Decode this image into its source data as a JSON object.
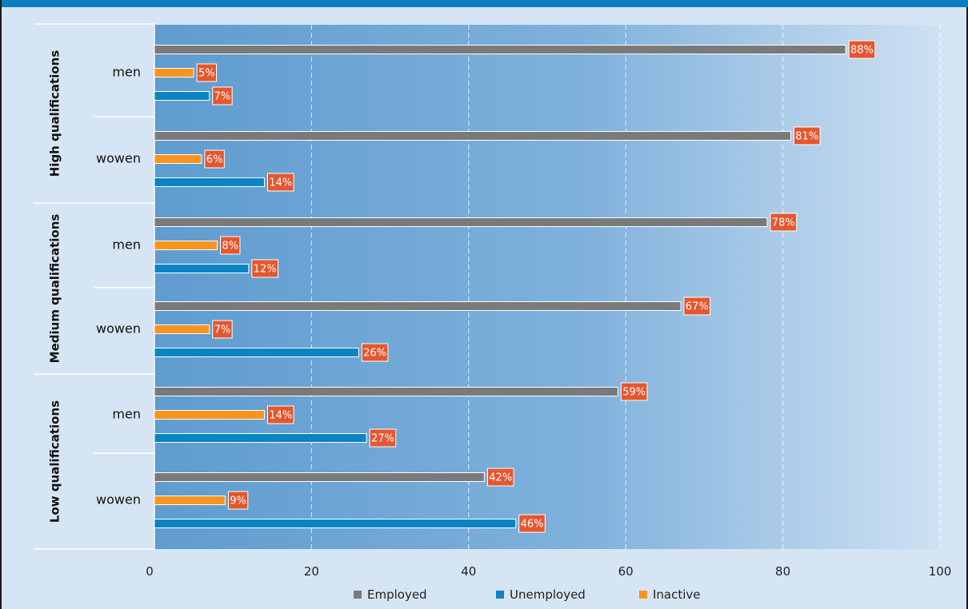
{
  "chart_data": {
    "type": "bar",
    "orientation": "horizontal",
    "title": "",
    "xlabel": "",
    "ylabel": "",
    "xlim": [
      0,
      100
    ],
    "x_ticks": [
      0,
      20,
      40,
      60,
      80,
      100
    ],
    "grid": "vertical dashed",
    "legend_position": "bottom",
    "series": [
      {
        "name": "Employed",
        "color": "#7a7a7a"
      },
      {
        "name": "Unemployed",
        "color": "#0a84c2"
      },
      {
        "name": "Inactive",
        "color": "#f7941d"
      }
    ],
    "bar_order_within_category": [
      "Employed",
      "Inactive",
      "Unemployed"
    ],
    "label_color": "#e4572e",
    "groups": [
      {
        "label": "High qualifications",
        "categories": [
          {
            "label": "men",
            "Employed": 88,
            "Inactive": 5,
            "Unemployed": 7
          },
          {
            "label": "wowen",
            "Employed": 81,
            "Inactive": 6,
            "Unemployed": 14
          }
        ]
      },
      {
        "label": "Medium qualifications",
        "categories": [
          {
            "label": "men",
            "Employed": 78,
            "Inactive": 8,
            "Unemployed": 12
          },
          {
            "label": "wowen",
            "Employed": 67,
            "Inactive": 7,
            "Unemployed": 26
          }
        ]
      },
      {
        "label": "Low qualifications",
        "categories": [
          {
            "label": "men",
            "Employed": 59,
            "Inactive": 14,
            "Unemployed": 27
          },
          {
            "label": "wowen",
            "Employed": 42,
            "Inactive": 9,
            "Unemployed": 46
          }
        ]
      }
    ]
  }
}
